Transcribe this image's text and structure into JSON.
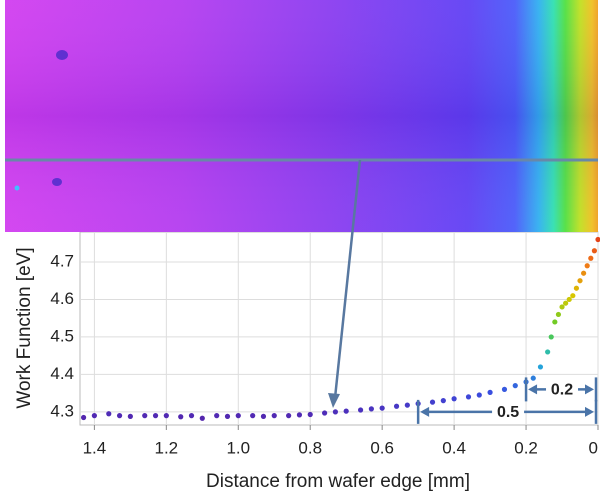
{
  "chart_data": {
    "type": "scatter",
    "x_label": "Distance from wafer edge [mm]",
    "y_label": "Work Function [eV]",
    "x": [
      1.43,
      1.4,
      1.36,
      1.33,
      1.3,
      1.26,
      1.23,
      1.2,
      1.16,
      1.13,
      1.1,
      1.06,
      1.03,
      1.0,
      0.96,
      0.93,
      0.9,
      0.86,
      0.83,
      0.8,
      0.76,
      0.73,
      0.7,
      0.66,
      0.63,
      0.6,
      0.56,
      0.53,
      0.5,
      0.46,
      0.43,
      0.4,
      0.36,
      0.33,
      0.3,
      0.26,
      0.23,
      0.2,
      0.18,
      0.16,
      0.14,
      0.13,
      0.12,
      0.11,
      0.1,
      0.09,
      0.08,
      0.07,
      0.06,
      0.05,
      0.04,
      0.03,
      0.02,
      0.01,
      0.0
    ],
    "values": [
      4.285,
      4.29,
      4.295,
      4.29,
      4.288,
      4.29,
      4.29,
      4.29,
      4.287,
      4.29,
      4.283,
      4.29,
      4.288,
      4.29,
      4.29,
      4.288,
      4.29,
      4.29,
      4.292,
      4.293,
      4.297,
      4.3,
      4.302,
      4.305,
      4.308,
      4.31,
      4.315,
      4.318,
      4.322,
      4.326,
      4.33,
      4.335,
      4.34,
      4.345,
      4.352,
      4.36,
      4.37,
      4.38,
      4.39,
      4.42,
      4.46,
      4.5,
      4.54,
      4.56,
      4.58,
      4.59,
      4.6,
      4.61,
      4.63,
      4.65,
      4.67,
      4.69,
      4.71,
      4.73,
      4.76
    ],
    "colormap": [
      "#5a1aa0",
      "#3a4ee0",
      "#20b8d8",
      "#58cc30",
      "#d8c800",
      "#f07818",
      "#e03418"
    ],
    "xlim": [
      1.44,
      0
    ],
    "ylim": [
      4.265,
      4.78
    ],
    "xticks": [
      1.4,
      1.2,
      {
        "value": 1,
        "label": "1.0"
      },
      0.8,
      0.6,
      0.4,
      0.2,
      0
    ],
    "yticks": [
      4.3,
      4.4,
      4.5,
      4.6,
      4.7
    ],
    "grid": true,
    "annotations": [
      {
        "label": "0.5",
        "x": [
          0.5,
          0
        ],
        "y": 4.3
      },
      {
        "label": "0.2",
        "x": [
          0.2,
          0
        ],
        "y": 4.36
      }
    ]
  }
}
